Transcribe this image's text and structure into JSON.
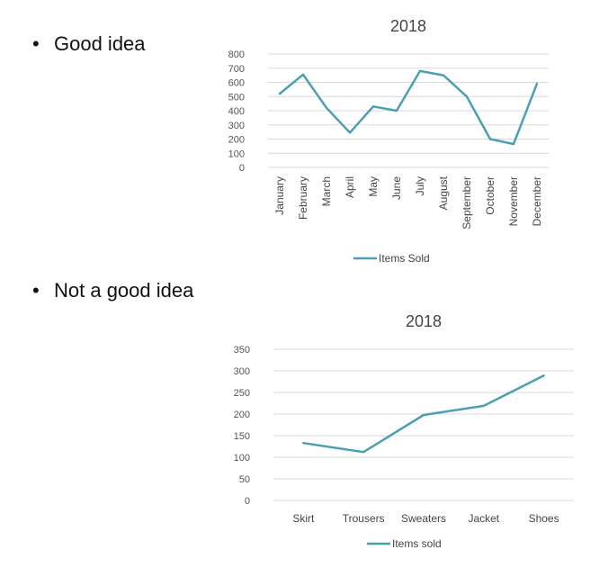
{
  "bullets": [
    {
      "text": "Good idea"
    },
    {
      "text": "Not a good idea"
    }
  ],
  "colors": {
    "series": "#4a9fb5",
    "grid": "#d9d9d9"
  },
  "chart_data": [
    {
      "type": "line",
      "title": "2018",
      "xlabel": "",
      "ylabel": "",
      "ylim": [
        0,
        800
      ],
      "yticks": [
        0,
        100,
        200,
        300,
        400,
        500,
        600,
        700,
        800
      ],
      "grid": true,
      "legend_placement": "bottom",
      "categories": [
        "January",
        "February",
        "March",
        "April",
        "May",
        "June",
        "July",
        "August",
        "September",
        "October",
        "November",
        "December"
      ],
      "series": [
        {
          "name": "Items Sold",
          "values": [
            520,
            655,
            420,
            245,
            430,
            400,
            680,
            650,
            500,
            200,
            165,
            590
          ]
        }
      ]
    },
    {
      "type": "line",
      "title": "2018",
      "xlabel": "",
      "ylabel": "",
      "ylim": [
        0,
        350
      ],
      "yticks": [
        0,
        50,
        100,
        150,
        200,
        250,
        300,
        350
      ],
      "grid": true,
      "legend_placement": "bottom",
      "categories": [
        "Skirt",
        "Trousers",
        "Sweaters",
        "Jacket",
        "Shoes"
      ],
      "series": [
        {
          "name": "Items sold",
          "values": [
            133,
            112,
            198,
            219,
            289
          ]
        }
      ]
    }
  ]
}
